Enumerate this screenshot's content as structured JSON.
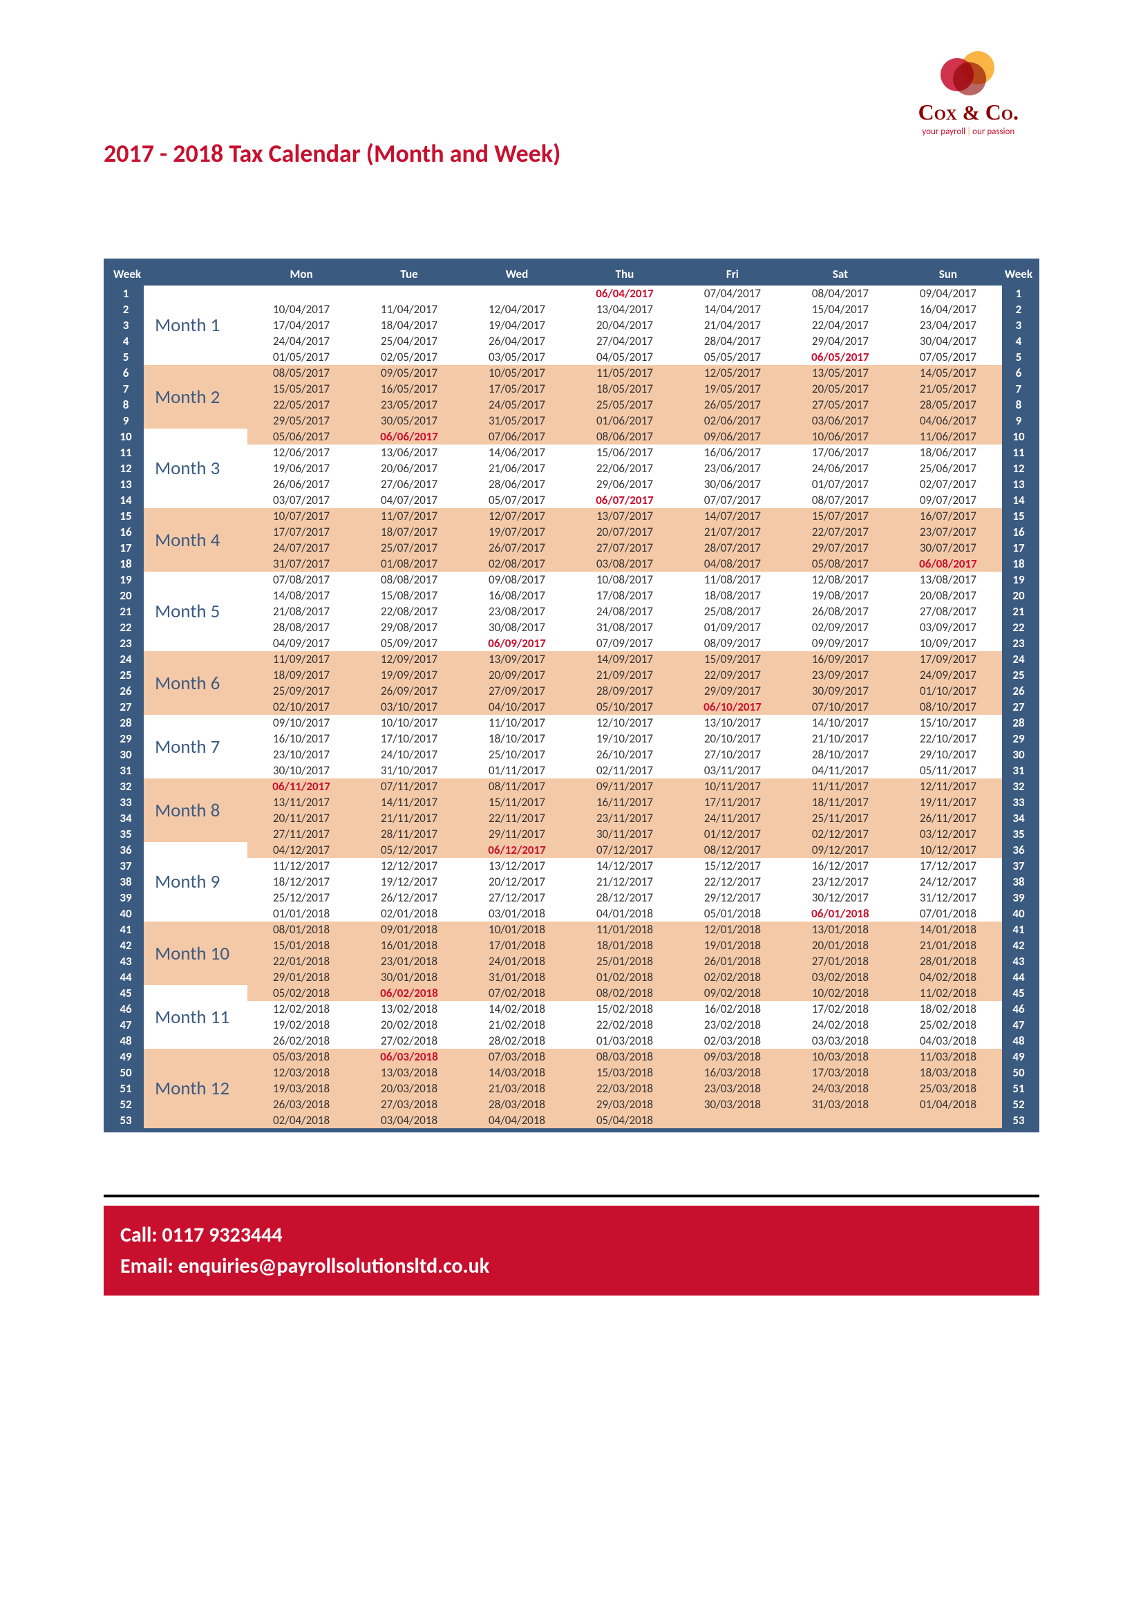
{
  "logo": {
    "name": "Cox & Co.",
    "tag_left": "your payroll",
    "tag_right": "our passion",
    "colors": {
      "red": "#c8102e",
      "darkred": "#8b0000",
      "orange": "#f9a825"
    }
  },
  "title": "2017 - 2018 Tax Calendar (Month and Week)",
  "header": {
    "week": "Week",
    "mon": "Mon",
    "tue": "Tue",
    "wed": "Wed",
    "thu": "Thu",
    "fri": "Fri",
    "sat": "Sat",
    "sun": "Sun"
  },
  "colors": {
    "header_bg": "#3b5a80",
    "shade_bg": "#f4c9a8",
    "highlight_text": "#c8102e",
    "month_text": "#3b5a80",
    "footer_bg": "#c8102e"
  },
  "fonts": {
    "title_size_pt": 27,
    "body_size_pt": 13,
    "month_size_pt": 20,
    "footer_size_pt": 22,
    "logo_size_pt": 24
  },
  "months": [
    {
      "label": "Month 1",
      "shaded": false,
      "weeks": [
        {
          "n": 1,
          "d": [
            "",
            "",
            "",
            "06/04/2017",
            "07/04/2017",
            "08/04/2017",
            "09/04/2017"
          ],
          "hl": [
            3
          ]
        },
        {
          "n": 2,
          "d": [
            "10/04/2017",
            "11/04/2017",
            "12/04/2017",
            "13/04/2017",
            "14/04/2017",
            "15/04/2017",
            "16/04/2017"
          ]
        },
        {
          "n": 3,
          "d": [
            "17/04/2017",
            "18/04/2017",
            "19/04/2017",
            "20/04/2017",
            "21/04/2017",
            "22/04/2017",
            "23/04/2017"
          ]
        },
        {
          "n": 4,
          "d": [
            "24/04/2017",
            "25/04/2017",
            "26/04/2017",
            "27/04/2017",
            "28/04/2017",
            "29/04/2017",
            "30/04/2017"
          ]
        },
        {
          "n": 5,
          "d": [
            "01/05/2017",
            "02/05/2017",
            "03/05/2017",
            "04/05/2017",
            "05/05/2017",
            "06/05/2017",
            "07/05/2017"
          ],
          "hl": [
            5
          ]
        }
      ]
    },
    {
      "label": "Month 2",
      "shaded": true,
      "weeks": [
        {
          "n": 6,
          "d": [
            "08/05/2017",
            "09/05/2017",
            "10/05/2017",
            "11/05/2017",
            "12/05/2017",
            "13/05/2017",
            "14/05/2017"
          ]
        },
        {
          "n": 7,
          "d": [
            "15/05/2017",
            "16/05/2017",
            "17/05/2017",
            "18/05/2017",
            "19/05/2017",
            "20/05/2017",
            "21/05/2017"
          ]
        },
        {
          "n": 8,
          "d": [
            "22/05/2017",
            "23/05/2017",
            "24/05/2017",
            "25/05/2017",
            "26/05/2017",
            "27/05/2017",
            "28/05/2017"
          ]
        },
        {
          "n": 9,
          "d": [
            "29/05/2017",
            "30/05/2017",
            "31/05/2017",
            "01/06/2017",
            "02/06/2017",
            "03/06/2017",
            "04/06/2017"
          ]
        }
      ]
    },
    {
      "label": "Month 3",
      "shaded": false,
      "weeks": [
        {
          "n": 10,
          "d": [
            "05/06/2017",
            "06/06/2017",
            "07/06/2017",
            "08/06/2017",
            "09/06/2017",
            "10/06/2017",
            "11/06/2017"
          ],
          "hl": [
            1
          ],
          "first_shaded": true
        },
        {
          "n": 11,
          "d": [
            "12/06/2017",
            "13/06/2017",
            "14/06/2017",
            "15/06/2017",
            "16/06/2017",
            "17/06/2017",
            "18/06/2017"
          ]
        },
        {
          "n": 12,
          "d": [
            "19/06/2017",
            "20/06/2017",
            "21/06/2017",
            "22/06/2017",
            "23/06/2017",
            "24/06/2017",
            "25/06/2017"
          ]
        },
        {
          "n": 13,
          "d": [
            "26/06/2017",
            "27/06/2017",
            "28/06/2017",
            "29/06/2017",
            "30/06/2017",
            "01/07/2017",
            "02/07/2017"
          ]
        },
        {
          "n": 14,
          "d": [
            "03/07/2017",
            "04/07/2017",
            "05/07/2017",
            "06/07/2017",
            "07/07/2017",
            "08/07/2017",
            "09/07/2017"
          ],
          "hl": [
            3
          ]
        }
      ]
    },
    {
      "label": "Month 4",
      "shaded": true,
      "weeks": [
        {
          "n": 15,
          "d": [
            "10/07/2017",
            "11/07/2017",
            "12/07/2017",
            "13/07/2017",
            "14/07/2017",
            "15/07/2017",
            "16/07/2017"
          ]
        },
        {
          "n": 16,
          "d": [
            "17/07/2017",
            "18/07/2017",
            "19/07/2017",
            "20/07/2017",
            "21/07/2017",
            "22/07/2017",
            "23/07/2017"
          ]
        },
        {
          "n": 17,
          "d": [
            "24/07/2017",
            "25/07/2017",
            "26/07/2017",
            "27/07/2017",
            "28/07/2017",
            "29/07/2017",
            "30/07/2017"
          ]
        },
        {
          "n": 18,
          "d": [
            "31/07/2017",
            "01/08/2017",
            "02/08/2017",
            "03/08/2017",
            "04/08/2017",
            "05/08/2017",
            "06/08/2017"
          ],
          "hl": [
            6
          ]
        }
      ]
    },
    {
      "label": "Month 5",
      "shaded": false,
      "weeks": [
        {
          "n": 19,
          "d": [
            "07/08/2017",
            "08/08/2017",
            "09/08/2017",
            "10/08/2017",
            "11/08/2017",
            "12/08/2017",
            "13/08/2017"
          ]
        },
        {
          "n": 20,
          "d": [
            "14/08/2017",
            "15/08/2017",
            "16/08/2017",
            "17/08/2017",
            "18/08/2017",
            "19/08/2017",
            "20/08/2017"
          ]
        },
        {
          "n": 21,
          "d": [
            "21/08/2017",
            "22/08/2017",
            "23/08/2017",
            "24/08/2017",
            "25/08/2017",
            "26/08/2017",
            "27/08/2017"
          ]
        },
        {
          "n": 22,
          "d": [
            "28/08/2017",
            "29/08/2017",
            "30/08/2017",
            "31/08/2017",
            "01/09/2017",
            "02/09/2017",
            "03/09/2017"
          ]
        },
        {
          "n": 23,
          "d": [
            "04/09/2017",
            "05/09/2017",
            "06/09/2017",
            "07/09/2017",
            "08/09/2017",
            "09/09/2017",
            "10/09/2017"
          ],
          "hl": [
            2
          ]
        }
      ]
    },
    {
      "label": "Month 6",
      "shaded": true,
      "weeks": [
        {
          "n": 24,
          "d": [
            "11/09/2017",
            "12/09/2017",
            "13/09/2017",
            "14/09/2017",
            "15/09/2017",
            "16/09/2017",
            "17/09/2017"
          ]
        },
        {
          "n": 25,
          "d": [
            "18/09/2017",
            "19/09/2017",
            "20/09/2017",
            "21/09/2017",
            "22/09/2017",
            "23/09/2017",
            "24/09/2017"
          ]
        },
        {
          "n": 26,
          "d": [
            "25/09/2017",
            "26/09/2017",
            "27/09/2017",
            "28/09/2017",
            "29/09/2017",
            "30/09/2017",
            "01/10/2017"
          ]
        },
        {
          "n": 27,
          "d": [
            "02/10/2017",
            "03/10/2017",
            "04/10/2017",
            "05/10/2017",
            "06/10/2017",
            "07/10/2017",
            "08/10/2017"
          ],
          "hl": [
            4
          ]
        }
      ]
    },
    {
      "label": "Month 7",
      "shaded": false,
      "weeks": [
        {
          "n": 28,
          "d": [
            "09/10/2017",
            "10/10/2017",
            "11/10/2017",
            "12/10/2017",
            "13/10/2017",
            "14/10/2017",
            "15/10/2017"
          ]
        },
        {
          "n": 29,
          "d": [
            "16/10/2017",
            "17/10/2017",
            "18/10/2017",
            "19/10/2017",
            "20/10/2017",
            "21/10/2017",
            "22/10/2017"
          ]
        },
        {
          "n": 30,
          "d": [
            "23/10/2017",
            "24/10/2017",
            "25/10/2017",
            "26/10/2017",
            "27/10/2017",
            "28/10/2017",
            "29/10/2017"
          ]
        },
        {
          "n": 31,
          "d": [
            "30/10/2017",
            "31/10/2017",
            "01/11/2017",
            "02/11/2017",
            "03/11/2017",
            "04/11/2017",
            "05/11/2017"
          ]
        }
      ]
    },
    {
      "label": "Month 8",
      "shaded": true,
      "weeks": [
        {
          "n": 32,
          "d": [
            "06/11/2017",
            "07/11/2017",
            "08/11/2017",
            "09/11/2017",
            "10/11/2017",
            "11/11/2017",
            "12/11/2017"
          ],
          "hl": [
            0
          ]
        },
        {
          "n": 33,
          "d": [
            "13/11/2017",
            "14/11/2017",
            "15/11/2017",
            "16/11/2017",
            "17/11/2017",
            "18/11/2017",
            "19/11/2017"
          ]
        },
        {
          "n": 34,
          "d": [
            "20/11/2017",
            "21/11/2017",
            "22/11/2017",
            "23/11/2017",
            "24/11/2017",
            "25/11/2017",
            "26/11/2017"
          ]
        },
        {
          "n": 35,
          "d": [
            "27/11/2017",
            "28/11/2017",
            "29/11/2017",
            "30/11/2017",
            "01/12/2017",
            "02/12/2017",
            "03/12/2017"
          ]
        }
      ]
    },
    {
      "label": "Month 9",
      "shaded": false,
      "weeks": [
        {
          "n": 36,
          "d": [
            "04/12/2017",
            "05/12/2017",
            "06/12/2017",
            "07/12/2017",
            "08/12/2017",
            "09/12/2017",
            "10/12/2017"
          ],
          "hl": [
            2
          ],
          "first_shaded": true
        },
        {
          "n": 37,
          "d": [
            "11/12/2017",
            "12/12/2017",
            "13/12/2017",
            "14/12/2017",
            "15/12/2017",
            "16/12/2017",
            "17/12/2017"
          ]
        },
        {
          "n": 38,
          "d": [
            "18/12/2017",
            "19/12/2017",
            "20/12/2017",
            "21/12/2017",
            "22/12/2017",
            "23/12/2017",
            "24/12/2017"
          ]
        },
        {
          "n": 39,
          "d": [
            "25/12/2017",
            "26/12/2017",
            "27/12/2017",
            "28/12/2017",
            "29/12/2017",
            "30/12/2017",
            "31/12/2017"
          ]
        },
        {
          "n": 40,
          "d": [
            "01/01/2018",
            "02/01/2018",
            "03/01/2018",
            "04/01/2018",
            "05/01/2018",
            "06/01/2018",
            "07/01/2018"
          ],
          "hl": [
            5
          ]
        }
      ]
    },
    {
      "label": "Month 10",
      "shaded": true,
      "weeks": [
        {
          "n": 41,
          "d": [
            "08/01/2018",
            "09/01/2018",
            "10/01/2018",
            "11/01/2018",
            "12/01/2018",
            "13/01/2018",
            "14/01/2018"
          ]
        },
        {
          "n": 42,
          "d": [
            "15/01/2018",
            "16/01/2018",
            "17/01/2018",
            "18/01/2018",
            "19/01/2018",
            "20/01/2018",
            "21/01/2018"
          ]
        },
        {
          "n": 43,
          "d": [
            "22/01/2018",
            "23/01/2018",
            "24/01/2018",
            "25/01/2018",
            "26/01/2018",
            "27/01/2018",
            "28/01/2018"
          ]
        },
        {
          "n": 44,
          "d": [
            "29/01/2018",
            "30/01/2018",
            "31/01/2018",
            "01/02/2018",
            "02/02/2018",
            "03/02/2018",
            "04/02/2018"
          ]
        }
      ]
    },
    {
      "label": "Month 11",
      "shaded": false,
      "weeks": [
        {
          "n": 45,
          "d": [
            "05/02/2018",
            "06/02/2018",
            "07/02/2018",
            "08/02/2018",
            "09/02/2018",
            "10/02/2018",
            "11/02/2018"
          ],
          "hl": [
            1
          ],
          "first_shaded": true
        },
        {
          "n": 46,
          "d": [
            "12/02/2018",
            "13/02/2018",
            "14/02/2018",
            "15/02/2018",
            "16/02/2018",
            "17/02/2018",
            "18/02/2018"
          ]
        },
        {
          "n": 47,
          "d": [
            "19/02/2018",
            "20/02/2018",
            "21/02/2018",
            "22/02/2018",
            "23/02/2018",
            "24/02/2018",
            "25/02/2018"
          ]
        },
        {
          "n": 48,
          "d": [
            "26/02/2018",
            "27/02/2018",
            "28/02/2018",
            "01/03/2018",
            "02/03/2018",
            "03/03/2018",
            "04/03/2018"
          ]
        }
      ]
    },
    {
      "label": "Month 12",
      "shaded": true,
      "weeks": [
        {
          "n": 49,
          "d": [
            "05/03/2018",
            "06/03/2018",
            "07/03/2018",
            "08/03/2018",
            "09/03/2018",
            "10/03/2018",
            "11/03/2018"
          ],
          "hl": [
            1
          ]
        },
        {
          "n": 50,
          "d": [
            "12/03/2018",
            "13/03/2018",
            "14/03/2018",
            "15/03/2018",
            "16/03/2018",
            "17/03/2018",
            "18/03/2018"
          ]
        },
        {
          "n": 51,
          "d": [
            "19/03/2018",
            "20/03/2018",
            "21/03/2018",
            "22/03/2018",
            "23/03/2018",
            "24/03/2018",
            "25/03/2018"
          ]
        },
        {
          "n": 52,
          "d": [
            "26/03/2018",
            "27/03/2018",
            "28/03/2018",
            "29/03/2018",
            "30/03/2018",
            "31/03/2018",
            "01/04/2018"
          ]
        },
        {
          "n": 53,
          "d": [
            "02/04/2018",
            "03/04/2018",
            "04/04/2018",
            "05/04/2018",
            "",
            "",
            ""
          ]
        }
      ]
    }
  ],
  "footer": {
    "call_label": "Call:",
    "call_value": "0117 9323444",
    "email_label": "Email:",
    "email_value": "enquiries@payrollsolutionsltd.co.uk"
  }
}
